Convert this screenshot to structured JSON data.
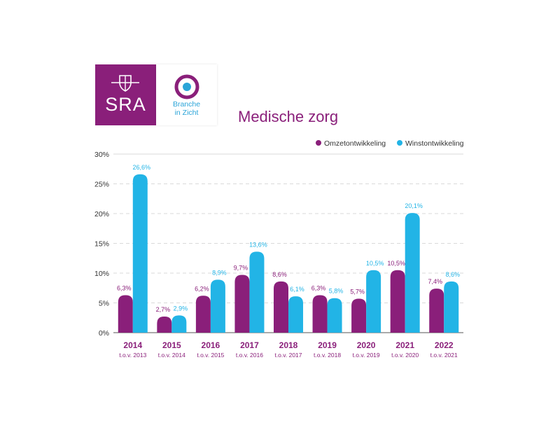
{
  "logos": {
    "sra": "SRA",
    "biz_line1": "Branche",
    "biz_line2": "in Zicht"
  },
  "colors": {
    "omzet": "#8a1f7a",
    "winst": "#22b4e6",
    "grid": "#d9d9d9"
  },
  "chart_data": {
    "type": "bar",
    "title": "Medische zorg",
    "categories": [
      "2014",
      "2015",
      "2016",
      "2017",
      "2018",
      "2019",
      "2020",
      "2021",
      "2022"
    ],
    "subcategories": [
      "t.o.v. 2013",
      "t.o.v. 2014",
      "t.o.v. 2015",
      "t.o.v. 2016",
      "t.o.v. 2017",
      "t.o.v. 2018",
      "t.o.v. 2019",
      "t.o.v. 2020",
      "t.o.v. 2021"
    ],
    "series": [
      {
        "name": "Omzetontwikkeling",
        "values": [
          6.3,
          2.7,
          6.2,
          9.7,
          8.6,
          6.3,
          5.7,
          10.5,
          7.4
        ],
        "labels": [
          "6,3%",
          "2,7%",
          "6,2%",
          "9,7%",
          "8,6%",
          "6,3%",
          "5,7%",
          "10,5%",
          "7,4%"
        ]
      },
      {
        "name": "Winstontwikkeling",
        "values": [
          26.6,
          2.9,
          8.9,
          13.6,
          6.1,
          5.8,
          10.5,
          20.1,
          8.6
        ],
        "labels": [
          "26,6%",
          "2,9%",
          "8,9%",
          "13,6%",
          "6,1%",
          "5,8%",
          "10,5%",
          "20,1%",
          "8,6%"
        ]
      }
    ],
    "ylim": [
      0,
      30
    ],
    "yticks": [
      0,
      5,
      10,
      15,
      20,
      25,
      30
    ],
    "ytick_labels": [
      "0%",
      "5%",
      "10%",
      "15%",
      "20%",
      "25%",
      "30%"
    ],
    "grid": true,
    "legend_position": "top-right"
  }
}
